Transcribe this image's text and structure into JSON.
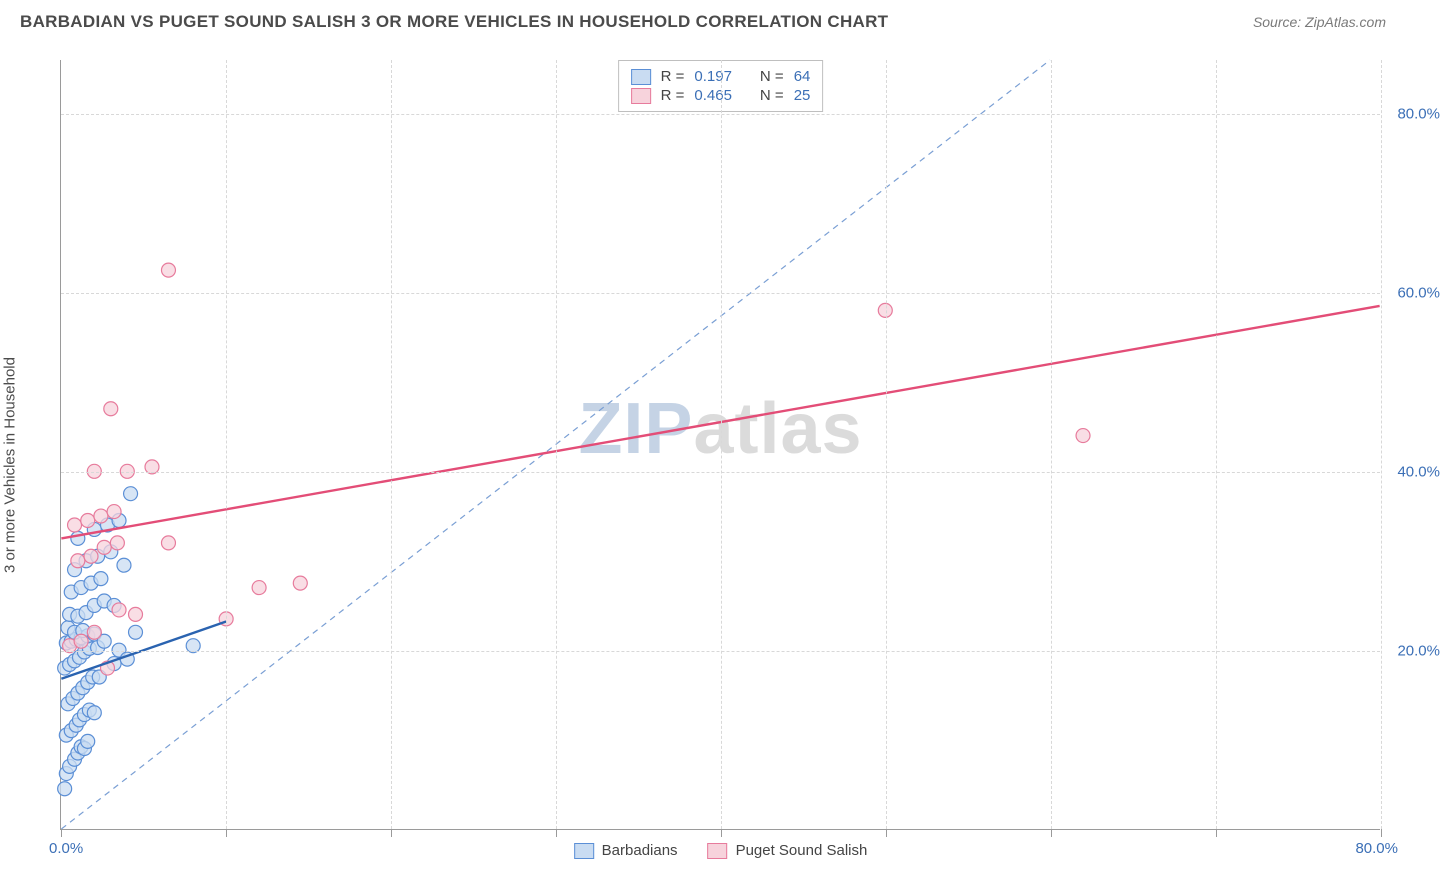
{
  "header": {
    "title": "BARBADIAN VS PUGET SOUND SALISH 3 OR MORE VEHICLES IN HOUSEHOLD CORRELATION CHART",
    "source": "Source: ZipAtlas.com"
  },
  "chart": {
    "type": "scatter",
    "y_label": "3 or more Vehicles in Household",
    "watermark": "ZIPatlas",
    "xlim": [
      0,
      80
    ],
    "ylim": [
      0,
      86
    ],
    "x_ticks": [
      0,
      10,
      20,
      30,
      40,
      50,
      60,
      70,
      80
    ],
    "x_tick_labels_shown": {
      "0": "0.0%",
      "80": "80.0%"
    },
    "y_grid": [
      20,
      40,
      60,
      80
    ],
    "y_tick_labels": {
      "20": "20.0%",
      "40": "40.0%",
      "60": "60.0%",
      "80": "80.0%"
    },
    "grid_color": "#d8d8d8",
    "axis_color": "#9a9a9a",
    "tick_label_color": "#3b6fb6",
    "background_color": "#ffffff",
    "marker_radius": 7,
    "marker_stroke_width": 1.2,
    "reference_line": {
      "color": "#7a9fd4",
      "dash": "6,5",
      "width": 1.2,
      "x1": 0,
      "y1": 0,
      "x2": 60,
      "y2": 86
    },
    "series": [
      {
        "name": "Barbadians",
        "label": "Barbadians",
        "fill_color": "#c9dcf2",
        "stroke_color": "#5b8fd6",
        "swatch_fill": "#c9dcf2",
        "swatch_border": "#5b8fd6",
        "R": "0.197",
        "N": "64",
        "trend": {
          "x1": 0,
          "y1": 16.8,
          "x2": 10,
          "y2": 23.2,
          "color": "#2a63b0",
          "width": 2.4
        },
        "points": [
          [
            0.2,
            4.5
          ],
          [
            0.3,
            6.2
          ],
          [
            0.5,
            7.0
          ],
          [
            0.8,
            7.8
          ],
          [
            1.0,
            8.5
          ],
          [
            1.2,
            9.2
          ],
          [
            1.4,
            9.0
          ],
          [
            1.6,
            9.8
          ],
          [
            0.3,
            10.5
          ],
          [
            0.6,
            11.0
          ],
          [
            0.9,
            11.6
          ],
          [
            1.1,
            12.2
          ],
          [
            1.4,
            12.8
          ],
          [
            1.7,
            13.3
          ],
          [
            2.0,
            13.0
          ],
          [
            0.4,
            14.0
          ],
          [
            0.7,
            14.6
          ],
          [
            1.0,
            15.2
          ],
          [
            1.3,
            15.8
          ],
          [
            1.6,
            16.4
          ],
          [
            1.9,
            17.0
          ],
          [
            2.3,
            17.0
          ],
          [
            0.2,
            18.0
          ],
          [
            0.5,
            18.4
          ],
          [
            0.8,
            18.8
          ],
          [
            1.1,
            19.2
          ],
          [
            1.4,
            19.8
          ],
          [
            1.7,
            20.2
          ],
          [
            2.2,
            20.3
          ],
          [
            0.3,
            20.8
          ],
          [
            0.6,
            21.0
          ],
          [
            0.9,
            21.2
          ],
          [
            1.2,
            21.4
          ],
          [
            1.6,
            21.6
          ],
          [
            2.0,
            21.8
          ],
          [
            2.6,
            21.0
          ],
          [
            0.4,
            22.5
          ],
          [
            0.8,
            22.0
          ],
          [
            1.3,
            22.2
          ],
          [
            3.2,
            18.5
          ],
          [
            3.5,
            20.0
          ],
          [
            4.0,
            19.0
          ],
          [
            0.5,
            24.0
          ],
          [
            1.0,
            23.8
          ],
          [
            1.5,
            24.2
          ],
          [
            2.0,
            25.0
          ],
          [
            2.6,
            25.5
          ],
          [
            3.2,
            25.0
          ],
          [
            0.6,
            26.5
          ],
          [
            1.2,
            27.0
          ],
          [
            1.8,
            27.5
          ],
          [
            2.4,
            28.0
          ],
          [
            0.8,
            29.0
          ],
          [
            1.5,
            30.0
          ],
          [
            2.2,
            30.5
          ],
          [
            3.0,
            31.0
          ],
          [
            1.0,
            32.5
          ],
          [
            2.0,
            33.5
          ],
          [
            2.8,
            34.0
          ],
          [
            3.5,
            34.5
          ],
          [
            4.2,
            37.5
          ],
          [
            8.0,
            20.5
          ],
          [
            4.5,
            22.0
          ],
          [
            3.8,
            29.5
          ]
        ]
      },
      {
        "name": "Puget Sound Salish",
        "label": "Puget Sound Salish",
        "fill_color": "#f7d3dc",
        "stroke_color": "#e77b9c",
        "swatch_fill": "#f7d3dc",
        "swatch_border": "#e77b9c",
        "R": "0.465",
        "N": "25",
        "trend": {
          "x1": 0,
          "y1": 32.5,
          "x2": 80,
          "y2": 58.5,
          "color": "#e34d77",
          "width": 2.4
        },
        "points": [
          [
            0.5,
            20.5
          ],
          [
            1.2,
            21.0
          ],
          [
            2.0,
            22.0
          ],
          [
            2.8,
            18.0
          ],
          [
            3.5,
            24.5
          ],
          [
            4.5,
            24.0
          ],
          [
            1.0,
            30.0
          ],
          [
            1.8,
            30.5
          ],
          [
            2.6,
            31.5
          ],
          [
            3.4,
            32.0
          ],
          [
            6.5,
            32.0
          ],
          [
            0.8,
            34.0
          ],
          [
            1.6,
            34.5
          ],
          [
            2.4,
            35.0
          ],
          [
            3.2,
            35.5
          ],
          [
            2.0,
            40.0
          ],
          [
            4.0,
            40.0
          ],
          [
            5.5,
            40.5
          ],
          [
            3.0,
            47.0
          ],
          [
            10.0,
            23.5
          ],
          [
            12.0,
            27.0
          ],
          [
            14.5,
            27.5
          ],
          [
            6.5,
            62.5
          ],
          [
            50.0,
            58.0
          ],
          [
            62.0,
            44.0
          ]
        ]
      }
    ],
    "stats_box": {
      "rows": [
        {
          "swatch": 0,
          "r_label": "R =",
          "r_val": "0.197",
          "n_label": "N =",
          "n_val": "64"
        },
        {
          "swatch": 1,
          "r_label": "R =",
          "r_val": "0.465",
          "n_label": "N =",
          "n_val": "25"
        }
      ]
    },
    "bottom_legend": [
      {
        "swatch": 0,
        "label": "Barbadians"
      },
      {
        "swatch": 1,
        "label": "Puget Sound Salish"
      }
    ]
  }
}
